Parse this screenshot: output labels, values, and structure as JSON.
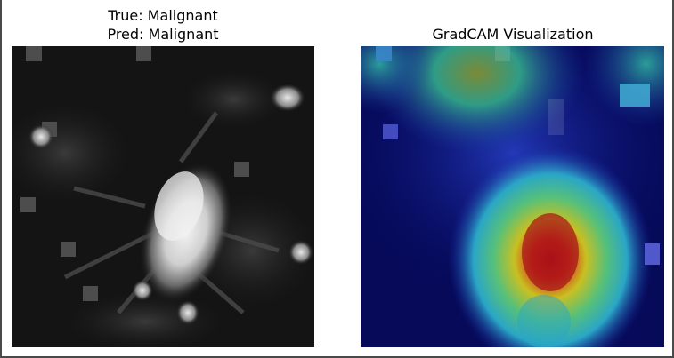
{
  "left_panel": {
    "title_line1": "True: Malignant",
    "title_line2": "Pred: Malignant"
  },
  "right_panel": {
    "title": "GradCAM Visualization"
  },
  "colors": {
    "frame": "#4a4a4a",
    "background": "#ffffff",
    "heat_low": "#070b6a",
    "heat_high": "#c0201a"
  }
}
